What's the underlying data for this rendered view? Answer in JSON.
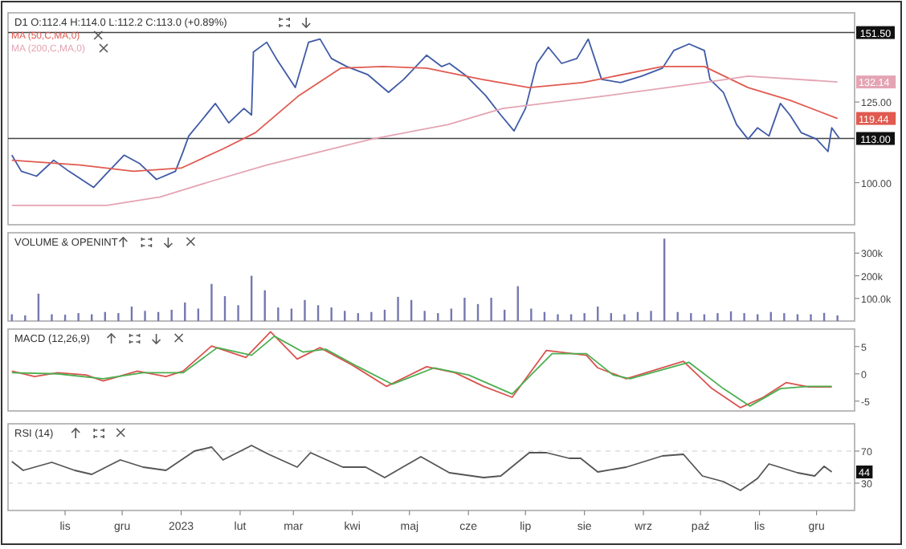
{
  "chart_data": [
    {
      "type": "line",
      "title": "D1 O:112.4 H:114.0 L:112.2 C:113.0 (+0.89%)",
      "xlim": [
        "2022-10-02",
        "2023-12-21"
      ],
      "ylim": [
        89,
        160
      ],
      "log": true,
      "yticks": [
        {
          "value": 100,
          "label": "100.00"
        },
        {
          "value": 125,
          "label": "125.00"
        }
      ],
      "tick_labels": "y",
      "legend": "top left",
      "ref_lines": [
        {
          "axis": "y",
          "value": 151.5,
          "label": "151.50",
          "color": "#444444"
        },
        {
          "axis": "y",
          "value": 113,
          "label": "113.00",
          "color": "#444444"
        }
      ],
      "annotations": [
        {
          "text": "132.14",
          "y": 132.14
        },
        {
          "text": "119.44",
          "y": 119.44
        }
      ],
      "series": [
        {
          "color": "#3f5aa6",
          "x": [
            "2022-10-04",
            "2022-10-09",
            "2022-10-17",
            "2022-10-26",
            "2022-11-03",
            "2022-11-16",
            "2022-11-23",
            "2022-12-02",
            "2022-12-10",
            "2022-12-19",
            "2022-12-29",
            "2023-01-02",
            "2023-01-05",
            "2023-01-12",
            "2023-01-19",
            "2023-01-26",
            "2023-02-03",
            "2023-02-07",
            "2023-02-08",
            "2023-02-15",
            "2023-02-20",
            "2023-03-02",
            "2023-03-09",
            "2023-03-15",
            "2023-03-21",
            "2023-03-29",
            "2023-04-09",
            "2023-04-20",
            "2023-04-28",
            "2023-05-10",
            "2023-05-18",
            "2023-05-22",
            "2023-05-31",
            "2023-06-10",
            "2023-06-18",
            "2023-06-25",
            "2023-07-01",
            "2023-07-07",
            "2023-07-13",
            "2023-07-20",
            "2023-07-28",
            "2023-08-03",
            "2023-08-10",
            "2023-08-20",
            "2023-08-31",
            "2023-09-11",
            "2023-09-17",
            "2023-09-25",
            "2023-10-03",
            "2023-10-06",
            "2023-10-13",
            "2023-10-20",
            "2023-10-26",
            "2023-10-31",
            "2023-11-06",
            "2023-11-12",
            "2023-11-17",
            "2023-11-23",
            "2023-12-01",
            "2023-12-07",
            "2023-12-09",
            "2023-12-13"
          ],
          "values": [
            107.9,
            103.2,
            101.8,
            106.4,
            103.2,
            98.7,
            102.7,
            107.9,
            105.5,
            100.9,
            103.2,
            108.9,
            113.8,
            119.0,
            124.5,
            118.0,
            122.8,
            120.6,
            143.6,
            147.5,
            141.0,
            130.1,
            147.5,
            148.8,
            141.0,
            137.9,
            134.9,
            128.4,
            133.1,
            142.3,
            137.9,
            139.1,
            134.3,
            127.3,
            120.6,
            115.4,
            122.8,
            139.1,
            145.5,
            139.1,
            141.0,
            148.8,
            133.1,
            131.9,
            134.3,
            137.3,
            144.2,
            146.8,
            144.2,
            133.1,
            128.4,
            117.4,
            112.8,
            116.4,
            113.8,
            124.5,
            120.6,
            114.8,
            112.8,
            109.0,
            116.4,
            113.0
          ]
        },
        {
          "name": "MA (50,C,MA,0)",
          "color": "#e05a50",
          "x": [
            "2022-10-04",
            "2022-11-09",
            "2022-12-07",
            "2023-01-01",
            "2023-01-23",
            "2023-02-09",
            "2023-03-04",
            "2023-03-26",
            "2023-04-17",
            "2023-05-10",
            "2023-06-08",
            "2023-07-03",
            "2023-07-31",
            "2023-09-11",
            "2023-10-03",
            "2023-10-26",
            "2023-11-17",
            "2023-12-12"
          ],
          "values": [
            106.4,
            105.0,
            103.2,
            104.1,
            109.8,
            114.8,
            127.3,
            137.3,
            137.9,
            137.3,
            133.1,
            130.1,
            131.9,
            137.9,
            137.9,
            130.1,
            125.6,
            119.44
          ]
        },
        {
          "name": "MA (200,C,MA,0)",
          "color": "#e4a4b4",
          "x": [
            "2022-10-04",
            "2022-11-23",
            "2022-12-21",
            "2023-01-17",
            "2023-02-15",
            "2023-03-15",
            "2023-04-11",
            "2023-05-21",
            "2023-06-19",
            "2023-08-14",
            "2023-10-03",
            "2023-10-26",
            "2023-12-12"
          ],
          "values": [
            93.9,
            93.9,
            96.1,
            100.4,
            105.0,
            108.9,
            112.8,
            117.4,
            122.8,
            127.3,
            131.9,
            134.3,
            132.14
          ]
        }
      ]
    },
    {
      "type": "bar",
      "title": "VOLUME & OPENINT",
      "xlim": [
        "2022-10-02",
        "2023-12-21"
      ],
      "ylim": [
        0,
        390000
      ],
      "yticks": [
        {
          "value": 100000,
          "label": "100.0k"
        },
        {
          "value": 200000,
          "label": "200k"
        },
        {
          "value": 300000,
          "label": "300k"
        }
      ],
      "tick_labels": "y",
      "series": [
        {
          "color": "#7478b0",
          "x": [
            "2022-10-04",
            "2022-10-11",
            "2022-10-18",
            "2022-10-25",
            "2022-11-01",
            "2022-11-08",
            "2022-11-15",
            "2022-11-22",
            "2022-11-29",
            "2022-12-06",
            "2022-12-13",
            "2022-12-20",
            "2022-12-27",
            "2023-01-03",
            "2023-01-10",
            "2023-01-17",
            "2023-01-24",
            "2023-01-31",
            "2023-02-07",
            "2023-02-14",
            "2023-02-21",
            "2023-02-28",
            "2023-03-07",
            "2023-03-14",
            "2023-03-21",
            "2023-03-28",
            "2023-04-04",
            "2023-04-11",
            "2023-04-18",
            "2023-04-25",
            "2023-05-02",
            "2023-05-09",
            "2023-05-16",
            "2023-05-23",
            "2023-05-30",
            "2023-06-06",
            "2023-06-13",
            "2023-06-20",
            "2023-06-27",
            "2023-07-04",
            "2023-07-11",
            "2023-07-18",
            "2023-07-25",
            "2023-08-01",
            "2023-08-08",
            "2023-08-15",
            "2023-08-22",
            "2023-08-29",
            "2023-09-05",
            "2023-09-12",
            "2023-09-19",
            "2023-09-26",
            "2023-10-03",
            "2023-10-10",
            "2023-10-17",
            "2023-10-24",
            "2023-10-31",
            "2023-11-07",
            "2023-11-14",
            "2023-11-21",
            "2023-11-28",
            "2023-12-05",
            "2023-12-12"
          ],
          "values": [
            30000,
            25000,
            121000,
            30000,
            28000,
            35000,
            30000,
            40000,
            35000,
            64000,
            45000,
            40000,
            50000,
            82000,
            55000,
            164000,
            110000,
            70000,
            200000,
            136000,
            60000,
            55000,
            93000,
            70000,
            60000,
            45000,
            35000,
            40000,
            50000,
            107000,
            93000,
            45000,
            35000,
            55000,
            103000,
            75000,
            103000,
            50000,
            154000,
            55000,
            40000,
            30000,
            30000,
            35000,
            64000,
            35000,
            30000,
            40000,
            45000,
            364000,
            40000,
            35000,
            30000,
            35000,
            43000,
            35000,
            30000,
            40000,
            35000,
            30000,
            30000,
            36000,
            25000
          ]
        }
      ]
    },
    {
      "type": "line",
      "title": "MACD (12,26,9)",
      "xlim": [
        "2022-10-02",
        "2023-12-21"
      ],
      "ylim": [
        -6.8,
        8.2
      ],
      "yticks": [
        -5,
        0,
        5
      ],
      "tick_labels": "y",
      "series": [
        {
          "color": "#d9534f",
          "x": [
            "2022-10-04",
            "2022-10-16",
            "2022-10-28",
            "2022-11-12",
            "2022-11-21",
            "2022-12-09",
            "2022-12-24",
            "2023-01-02",
            "2023-01-17",
            "2023-02-04",
            "2023-02-17",
            "2023-03-03",
            "2023-03-15",
            "2023-04-01",
            "2023-04-19",
            "2023-05-10",
            "2023-05-25",
            "2023-06-09",
            "2023-06-24",
            "2023-07-12",
            "2023-08-02",
            "2023-08-08",
            "2023-08-23",
            "2023-09-22",
            "2023-10-07",
            "2023-10-22",
            "2023-11-03",
            "2023-11-15",
            "2023-11-27",
            "2023-12-09"
          ],
          "values": [
            0.5,
            -0.5,
            0.2,
            -0.2,
            -1.3,
            0.5,
            -0.5,
            0.5,
            5.1,
            3.0,
            7.7,
            2.7,
            4.8,
            1.6,
            -2.3,
            1.3,
            0.2,
            -2.3,
            -4.3,
            4.3,
            3.4,
            1.1,
            -0.9,
            2.3,
            -2.7,
            -6.2,
            -4.3,
            -1.6,
            -2.4,
            -2.4
          ]
        },
        {
          "color": "#4caf50",
          "x": [
            "2022-10-04",
            "2022-10-28",
            "2022-11-21",
            "2022-12-12",
            "2023-01-02",
            "2023-01-20",
            "2023-02-07",
            "2023-02-19",
            "2023-03-06",
            "2023-03-18",
            "2023-04-04",
            "2023-04-22",
            "2023-05-14",
            "2023-06-01",
            "2023-06-24",
            "2023-07-15",
            "2023-08-02",
            "2023-08-16",
            "2023-08-25",
            "2023-09-25",
            "2023-10-13",
            "2023-10-27",
            "2023-11-12",
            "2023-11-27",
            "2023-12-09"
          ],
          "values": [
            0.2,
            0,
            -0.9,
            0.2,
            0.2,
            4.8,
            3.4,
            6.9,
            4.0,
            4.5,
            1.3,
            -1.9,
            1.1,
            -0.2,
            -3.7,
            3.7,
            3.7,
            -0.2,
            -0.9,
            2.1,
            -2.7,
            -5.9,
            -2.7,
            -2.3,
            -2.3
          ]
        }
      ]
    },
    {
      "type": "line",
      "title": "RSI (14)",
      "xlim": [
        "2022-10-02",
        "2023-12-21"
      ],
      "xticks": [
        {
          "value": "2022-11-01",
          "label": "lis"
        },
        {
          "value": "2022-12-01",
          "label": "gru"
        },
        {
          "value": "2023-01-01",
          "label": "2023"
        },
        {
          "value": "2023-02-01",
          "label": "lut"
        },
        {
          "value": "2023-03-01",
          "label": "mar"
        },
        {
          "value": "2023-04-01",
          "label": "kwi"
        },
        {
          "value": "2023-05-01",
          "label": "maj"
        },
        {
          "value": "2023-06-01",
          "label": "cze"
        },
        {
          "value": "2023-07-01",
          "label": "lip"
        },
        {
          "value": "2023-08-01",
          "label": "sie"
        },
        {
          "value": "2023-09-01",
          "label": "wrz"
        },
        {
          "value": "2023-10-01",
          "label": "paź"
        },
        {
          "value": "2023-11-01",
          "label": "lis"
        },
        {
          "value": "2023-12-01",
          "label": "gru"
        }
      ],
      "ylim": [
        -4,
        104
      ],
      "yticks": [
        30,
        70
      ],
      "grid": "y",
      "annotations": [
        {
          "text": "44",
          "y": 44
        }
      ],
      "series": [
        {
          "color": "#555555",
          "x": [
            "2022-10-04",
            "2022-10-10",
            "2022-10-25",
            "2022-11-06",
            "2022-11-15",
            "2022-11-30",
            "2022-12-12",
            "2022-12-24",
            "2023-01-08",
            "2023-01-17",
            "2023-01-23",
            "2023-02-07",
            "2023-02-16",
            "2023-03-03",
            "2023-03-10",
            "2023-03-27",
            "2023-04-08",
            "2023-04-18",
            "2023-05-07",
            "2023-05-22",
            "2023-06-09",
            "2023-06-18",
            "2023-07-03",
            "2023-07-12",
            "2023-07-24",
            "2023-07-30",
            "2023-08-08",
            "2023-08-23",
            "2023-09-11",
            "2023-09-22",
            "2023-10-02",
            "2023-10-13",
            "2023-10-22",
            "2023-10-31",
            "2023-11-06",
            "2023-11-21",
            "2023-11-30",
            "2023-12-05",
            "2023-12-09"
          ],
          "values": [
            57,
            46,
            56,
            46,
            41,
            59,
            50,
            46,
            70,
            75,
            59,
            77,
            66,
            50,
            68,
            50,
            50,
            37,
            63,
            43,
            37,
            39,
            68,
            68,
            61,
            61,
            44,
            50,
            64,
            66,
            39,
            32,
            21,
            36,
            54,
            43,
            39,
            51,
            44
          ]
        }
      ]
    }
  ]
}
